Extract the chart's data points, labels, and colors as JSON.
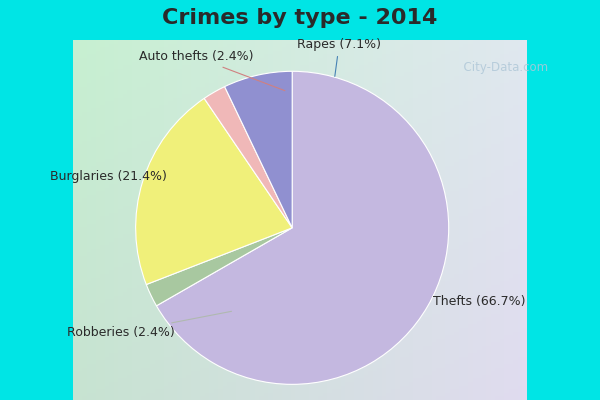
{
  "title": "Crimes by type - 2014",
  "title_fontsize": 16,
  "title_fontweight": "bold",
  "labels": [
    "Thefts",
    "Burglaries",
    "Robberies",
    "Auto thefts",
    "Rapes"
  ],
  "values": [
    66.7,
    21.4,
    2.4,
    2.4,
    7.1
  ],
  "colors": [
    "#c4b8e0",
    "#f0f07a",
    "#a8c8a0",
    "#f0b8b8",
    "#9090d0"
  ],
  "label_texts": [
    "Thefts (66.7%)",
    "Burglaries (21.4%)",
    "Robberies (2.4%)",
    "Auto thefts (2.4%)",
    "Rapes (7.1%)"
  ],
  "background_top": "#00e5e5",
  "background_main_tl": "#c8e8d0",
  "background_main_br": "#e8e8f8",
  "figsize": [
    6.0,
    4.0
  ],
  "dpi": 100,
  "startangle": 90,
  "label_fontsize": 9,
  "watermark": "City-Data.com",
  "watermark_color": "#b0c8d8",
  "title_color": "#2a2a2a"
}
